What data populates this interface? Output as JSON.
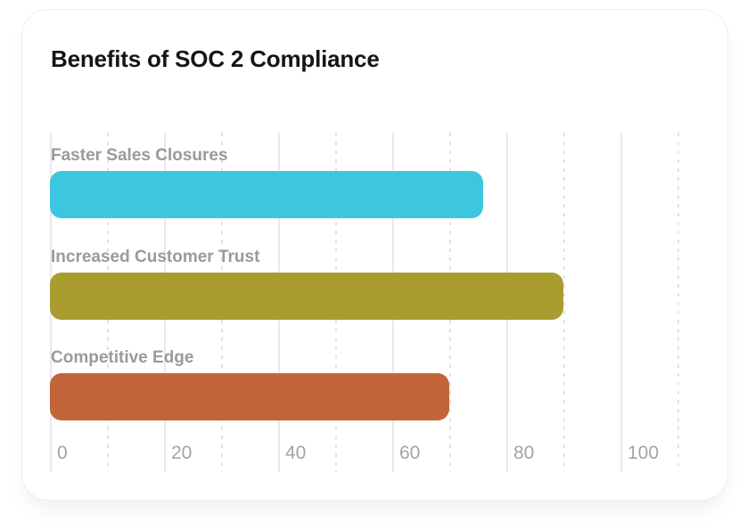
{
  "chart_data": {
    "type": "bar",
    "orientation": "horizontal",
    "title": "Benefits of SOC 2 Compliance",
    "categories": [
      "Faster Sales Closures",
      "Increased Customer Trust",
      "Competitive Edge"
    ],
    "values": [
      76,
      90,
      70
    ],
    "bar_colors": [
      "#3EC6E0",
      "#A99D2F",
      "#C26439"
    ],
    "xlabel": "",
    "ylabel": "",
    "x_axis": {
      "tick_labels": [
        "0",
        "20",
        "40",
        "60",
        "80",
        "100"
      ],
      "tick_values": [
        0,
        20,
        40,
        60,
        80,
        100
      ],
      "minor_tick_values": [
        10,
        30,
        50,
        70,
        90,
        110
      ],
      "range": [
        0,
        110
      ],
      "grid": "on",
      "grid_major_style": "solid",
      "grid_minor_style": "dashed"
    },
    "legend": "none",
    "colors": {
      "title_text": "#151515",
      "category_label_text": "#9a9a9b",
      "axis_tick_text": "#a3a3a6",
      "grid_major": "#e9e9e9",
      "grid_minor": "#e3e3e3",
      "card_background": "#ffffff",
      "page_background": "#ffffff",
      "card_border": "#ededed"
    }
  }
}
